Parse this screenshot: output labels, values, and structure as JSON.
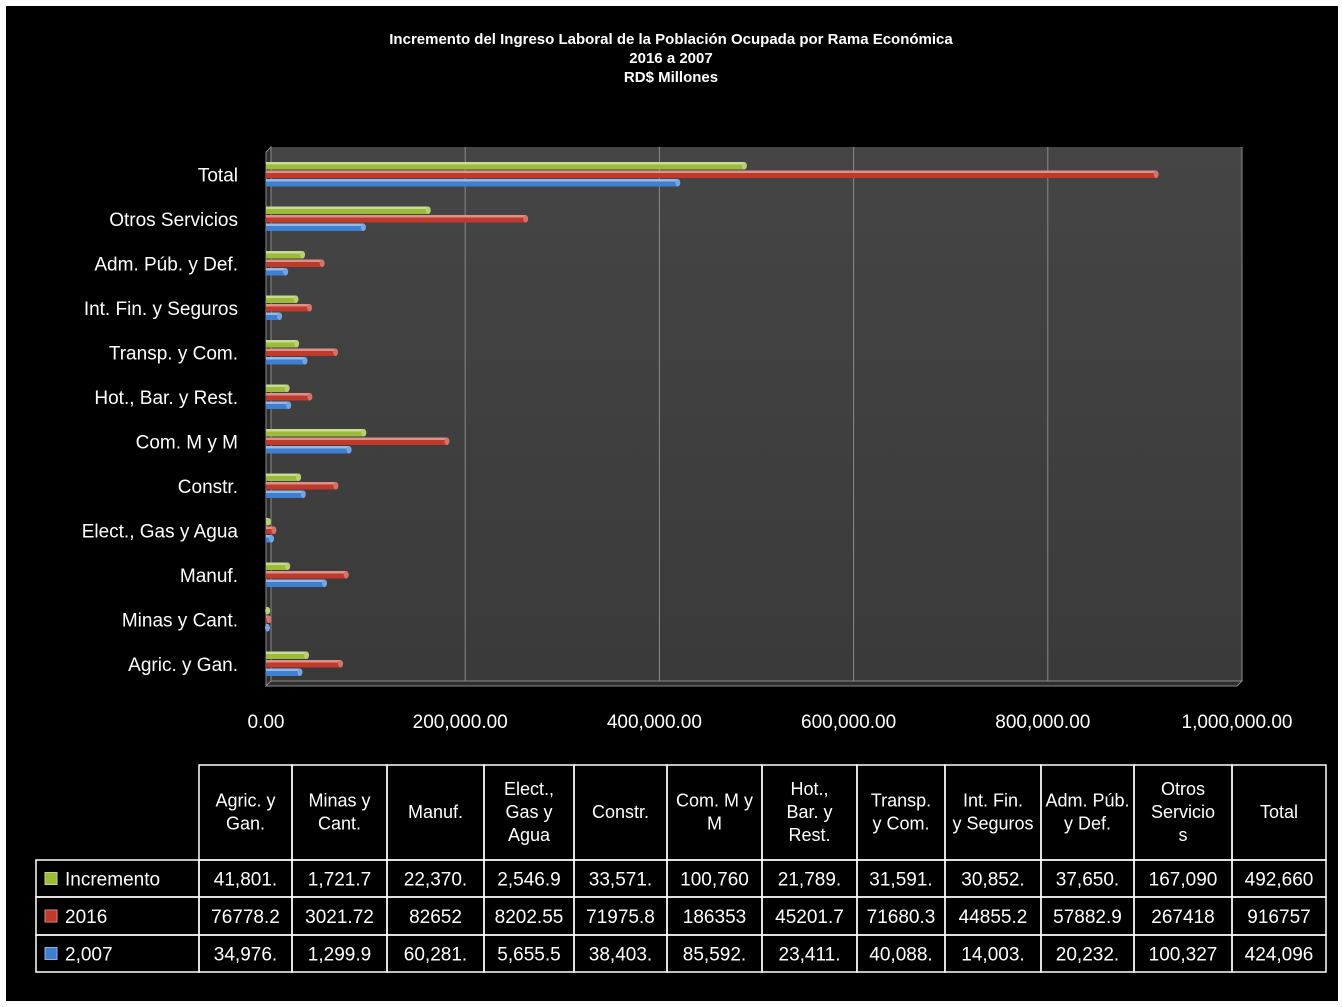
{
  "chart_data": {
    "type": "bar",
    "orientation": "horizontal",
    "title": "Incremento del Ingreso Laboral de la Población Ocupada por Rama Económica",
    "subtitle": "2016 a 2007",
    "subtitle2": "RD$ Millones",
    "categories": [
      "Agric. y Gan.",
      "Minas y Cant.",
      "Manuf.",
      "Elect., Gas y Agua",
      "Constr.",
      "Com. M y M",
      "Hot., Bar. y Rest.",
      "Transp. y Com.",
      "Int. Fin. y Seguros",
      "Adm. Púb. y Def.",
      "Otros Servicios",
      "Total"
    ],
    "table_headers": [
      "Agric. y Gan.",
      "Minas y Cant.",
      "Manuf.",
      "Elect., Gas y Agua",
      "Constr.",
      "Com. M y M",
      "Hot., Bar. y Rest.",
      "Transp. y Com.",
      "Int. Fin. y Seguros",
      "Adm. Púb. y Def.",
      "Otros Servicio s",
      "Total"
    ],
    "series": [
      {
        "name": "Incremento",
        "color": "#9bbb3b",
        "values": [
          41801,
          1721.7,
          22370,
          2546.9,
          33571,
          100760,
          21789,
          31591,
          30852,
          37650,
          167090,
          492660
        ],
        "labels": [
          "41,801.",
          "1,721.7",
          "22,370.",
          "2,546.9",
          "33,571.",
          "100,760",
          "21,789.",
          "31,591.",
          "30,852.",
          "37,650.",
          "167,090",
          "492,660"
        ]
      },
      {
        "name": "2016",
        "color": "#c0392b",
        "values": [
          76778.2,
          3021.72,
          82652,
          8202.55,
          71975.8,
          186353,
          45201.7,
          71680.3,
          44855.2,
          57882.9,
          267418,
          916757
        ],
        "labels": [
          "76778.2",
          "3021.72",
          "82652",
          "8202.55",
          "71975.8",
          "186353",
          "45201.7",
          "71680.3",
          "44855.2",
          "57882.9",
          "267418",
          "916757"
        ]
      },
      {
        "name": "2,007",
        "color": "#3f7fd1",
        "values": [
          34976,
          1299.9,
          60281,
          5655.5,
          38403,
          85592,
          23411,
          40088,
          14003,
          20232,
          100327,
          424096
        ],
        "labels": [
          "34,976.",
          "1,299.9",
          "60,281.",
          "5,655.5",
          "38,403.",
          "85,592.",
          "23,411.",
          "40,088.",
          "14,003.",
          "20,232.",
          "100,327",
          "424,096"
        ]
      }
    ],
    "xlim": [
      0,
      1000000
    ],
    "xticks": [
      "0.00",
      "200,000.00",
      "400,000.00",
      "600,000.00",
      "800,000.00",
      "1,000,000.00"
    ],
    "grid": true,
    "legend": "data-table"
  }
}
